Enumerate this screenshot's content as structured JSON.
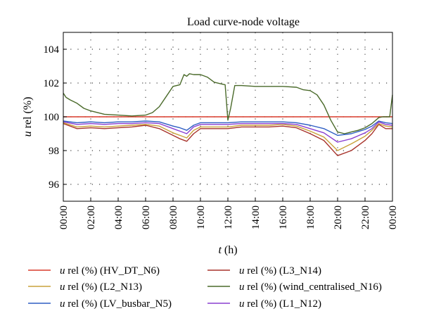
{
  "chart_data": {
    "type": "line",
    "title": "Load curve-node voltage",
    "xlabel": {
      "var": "t",
      "unit": "(h)"
    },
    "ylabel": {
      "var": "u",
      "rest": " rel (%)"
    },
    "xlim": [
      0,
      24
    ],
    "ylim": [
      95,
      105
    ],
    "x_ticks": [
      "00:00",
      "02:00",
      "04:00",
      "06:00",
      "08:00",
      "10:00",
      "12:00",
      "14:00",
      "16:00",
      "18:00",
      "20:00",
      "22:00",
      "00:00"
    ],
    "y_ticks": [
      "96",
      "98",
      "100",
      "102",
      "104"
    ],
    "grid": true,
    "legend_placement": "below",
    "series": [
      {
        "name": "HV_DT_N6",
        "legend_var": "u",
        "legend_rest": " rel (%) (HV_DT_N6)",
        "color": "#d93b2b",
        "x": [
          0,
          24
        ],
        "y": [
          100.0,
          100.0
        ]
      },
      {
        "name": "L3_N14",
        "legend_var": "u",
        "legend_rest": " rel (%) (L3_N14)",
        "color": "#a8332b",
        "x": [
          0,
          1,
          2,
          3,
          4,
          5,
          6,
          7,
          8,
          8.5,
          9,
          9.5,
          10,
          11,
          12,
          13,
          14,
          15,
          16,
          17,
          18,
          19,
          20,
          21,
          22,
          22.5,
          23,
          23.5,
          24
        ],
        "y": [
          99.6,
          99.3,
          99.35,
          99.3,
          99.35,
          99.4,
          99.5,
          99.3,
          98.9,
          98.7,
          98.55,
          99.0,
          99.3,
          99.3,
          99.3,
          99.4,
          99.4,
          99.4,
          99.45,
          99.35,
          99.0,
          98.6,
          97.7,
          98.0,
          98.6,
          99.0,
          99.55,
          99.3,
          99.3
        ]
      },
      {
        "name": "L2_N13",
        "legend_var": "u",
        "legend_rest": " rel (%) (L2_N13)",
        "color": "#c9a23b",
        "x": [
          0,
          1,
          2,
          3,
          4,
          5,
          6,
          7,
          8,
          8.5,
          9,
          9.5,
          10,
          11,
          12,
          13,
          14,
          15,
          16,
          17,
          18,
          19,
          20,
          21,
          22,
          22.5,
          23,
          23.5,
          24
        ],
        "y": [
          99.65,
          99.4,
          99.45,
          99.4,
          99.45,
          99.5,
          99.55,
          99.45,
          99.05,
          98.9,
          98.75,
          99.2,
          99.4,
          99.4,
          99.4,
          99.5,
          99.5,
          99.5,
          99.55,
          99.45,
          99.15,
          98.8,
          98.0,
          98.4,
          98.85,
          99.2,
          99.6,
          99.45,
          99.4
        ]
      },
      {
        "name": "wind_centralised_N16",
        "legend_var": "u",
        "legend_rest": " rel (%) (wind_centralised_N16)",
        "color": "#4a6a2a",
        "x": [
          0,
          0.2,
          0.5,
          1,
          1.5,
          2,
          3,
          4,
          5,
          6,
          6.5,
          7,
          7.5,
          8,
          8.5,
          8.8,
          9,
          9.2,
          9.5,
          10,
          10.5,
          11,
          11.5,
          11.8,
          12,
          12.2,
          12.5,
          13,
          14,
          15,
          16,
          17,
          17.5,
          18,
          18.5,
          19,
          19.5,
          20,
          20.5,
          21,
          21.5,
          22,
          22.5,
          23,
          23.3,
          23.8,
          24
        ],
        "y": [
          101.4,
          101.15,
          101.0,
          100.8,
          100.5,
          100.35,
          100.15,
          100.1,
          100.05,
          100.1,
          100.25,
          100.6,
          101.2,
          101.8,
          101.9,
          102.5,
          102.4,
          102.55,
          102.5,
          102.5,
          102.35,
          102.05,
          101.95,
          101.9,
          99.8,
          100.5,
          101.85,
          101.85,
          101.8,
          101.8,
          101.8,
          101.75,
          101.6,
          101.55,
          101.3,
          100.7,
          99.8,
          99.1,
          99.0,
          99.1,
          99.2,
          99.35,
          99.6,
          99.95,
          100.0,
          100.0,
          101.3
        ]
      },
      {
        "name": "LV_busbar_N5",
        "legend_var": "u",
        "legend_rest": " rel (%) (LV_busbar_N5)",
        "color": "#2f5fc4",
        "x": [
          0,
          1,
          2,
          3,
          4,
          5,
          6,
          7,
          8,
          8.5,
          9,
          9.5,
          10,
          11,
          12,
          13,
          14,
          15,
          16,
          17,
          18,
          19,
          20,
          21,
          22,
          22.5,
          23,
          23.5,
          24
        ],
        "y": [
          99.75,
          99.65,
          99.7,
          99.65,
          99.7,
          99.7,
          99.75,
          99.7,
          99.45,
          99.35,
          99.2,
          99.5,
          99.65,
          99.65,
          99.65,
          99.7,
          99.7,
          99.7,
          99.7,
          99.65,
          99.5,
          99.3,
          98.9,
          99.0,
          99.25,
          99.45,
          99.75,
          99.65,
          99.6
        ]
      },
      {
        "name": "L1_N12",
        "legend_var": "u",
        "legend_rest": " rel (%) (L1_N12)",
        "color": "#8a3fd1",
        "x": [
          0,
          1,
          2,
          3,
          4,
          5,
          6,
          7,
          8,
          8.5,
          9,
          9.5,
          10,
          11,
          12,
          13,
          14,
          15,
          16,
          17,
          18,
          19,
          20,
          21,
          22,
          22.5,
          23,
          23.5,
          24
        ],
        "y": [
          99.7,
          99.55,
          99.6,
          99.55,
          99.6,
          99.6,
          99.65,
          99.6,
          99.3,
          99.15,
          99.0,
          99.4,
          99.55,
          99.55,
          99.55,
          99.6,
          99.6,
          99.6,
          99.6,
          99.55,
          99.3,
          99.05,
          98.5,
          98.7,
          99.05,
          99.3,
          99.7,
          99.55,
          99.5
        ]
      }
    ],
    "legend_order": [
      0,
      1,
      2,
      3,
      4,
      5
    ]
  }
}
